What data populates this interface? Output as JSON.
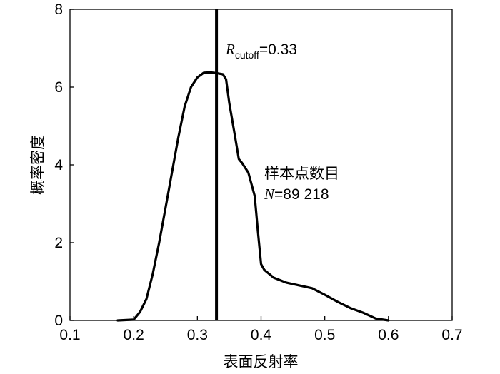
{
  "chart_data": {
    "type": "line",
    "title": "",
    "xlabel": "表面反射率",
    "ylabel": "概率密度",
    "xlim": [
      0.1,
      0.7
    ],
    "ylim": [
      0,
      8
    ],
    "x_ticks": [
      0.1,
      0.2,
      0.3,
      0.4,
      0.5,
      0.6,
      0.7
    ],
    "x_tick_labels": [
      "0.1",
      "0.2",
      "0.3",
      "0.4",
      "0.5",
      "0.6",
      "0.7"
    ],
    "y_ticks": [
      0,
      2,
      4,
      6,
      8
    ],
    "y_tick_labels": [
      "0",
      "2",
      "4",
      "6",
      "8"
    ],
    "grid": false,
    "series": [
      {
        "x": [
          0.175,
          0.2,
          0.21,
          0.22,
          0.23,
          0.24,
          0.25,
          0.26,
          0.27,
          0.28,
          0.29,
          0.3,
          0.31,
          0.32,
          0.33,
          0.34,
          0.345,
          0.35,
          0.36,
          0.365,
          0.37,
          0.38,
          0.39,
          0.395,
          0.4,
          0.405,
          0.42,
          0.44,
          0.46,
          0.48,
          0.5,
          0.52,
          0.54,
          0.56,
          0.58,
          0.6
        ],
        "values": [
          0,
          0.02,
          0.22,
          0.55,
          1.2,
          2.0,
          2.9,
          3.8,
          4.7,
          5.5,
          6.0,
          6.25,
          6.37,
          6.38,
          6.36,
          6.33,
          6.2,
          5.6,
          4.65,
          4.15,
          4.05,
          3.8,
          3.2,
          2.3,
          1.45,
          1.3,
          1.1,
          0.97,
          0.9,
          0.83,
          0.66,
          0.48,
          0.32,
          0.2,
          0.05,
          0
        ]
      }
    ],
    "cutoff": {
      "x": 0.33,
      "label_symbol": "R",
      "label_subscript": "cutoff",
      "label_value": "=0.33"
    },
    "annotation": {
      "line1": "样本点数目",
      "line2_symbol": "N",
      "line2_value": "=89 218"
    }
  }
}
